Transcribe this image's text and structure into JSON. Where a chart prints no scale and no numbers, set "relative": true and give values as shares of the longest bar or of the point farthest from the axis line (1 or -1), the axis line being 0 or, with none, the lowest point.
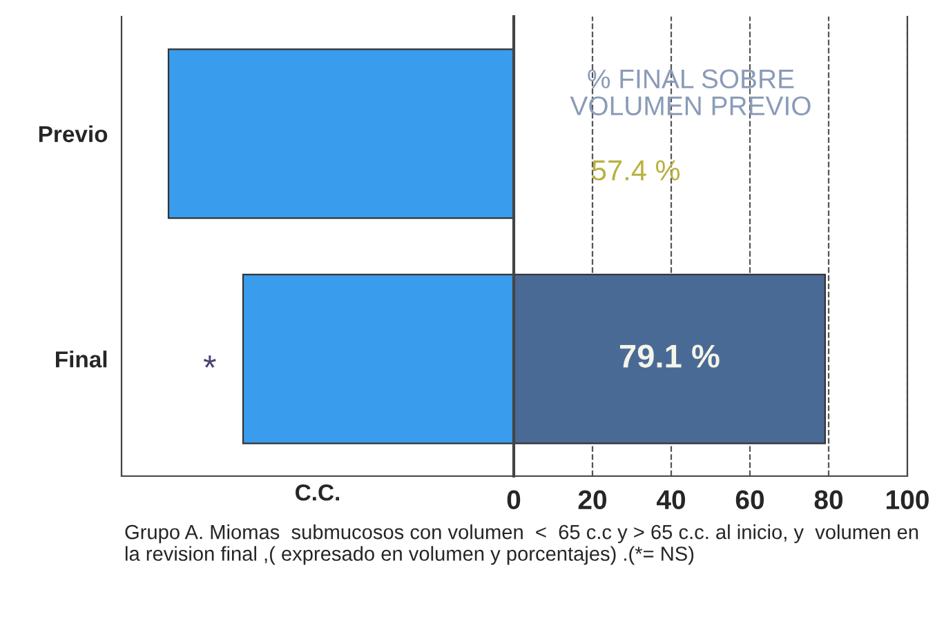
{
  "chart_data": [
    {
      "type": "bar",
      "orientation": "horizontal",
      "relative": true,
      "categories": [
        "Previo",
        "Final"
      ],
      "xlabel": "C.C.",
      "tick_labels": "y",
      "series": [
        {
          "color": "#3a9cec",
          "values": [
            -1,
            -0.784
          ]
        }
      ],
      "annotations": [
        "*",
        "Grupo A. Miomas  submucosos con volumen  <  65 c.c y > 65 c.c. al inicio, y  volumen en la revision final ,( expresado en volumen y porcentajes) .(*= NS)"
      ]
    },
    {
      "type": "bar",
      "orientation": "horizontal",
      "categories": [
        null,
        null
      ],
      "xlim": [
        0,
        100
      ],
      "xticks": [
        0,
        20,
        40,
        60,
        80,
        100
      ],
      "grid": "x",
      "tick_labels": "x",
      "series": [
        {
          "color": "#4a6a96",
          "values": [
            null,
            79.1
          ],
          "value_labels": [
            null,
            "79.1 %"
          ]
        }
      ],
      "annotations": [
        "% FINAL SOBRE\nVOLUMEN PREVIO",
        "57.4 %"
      ]
    }
  ]
}
